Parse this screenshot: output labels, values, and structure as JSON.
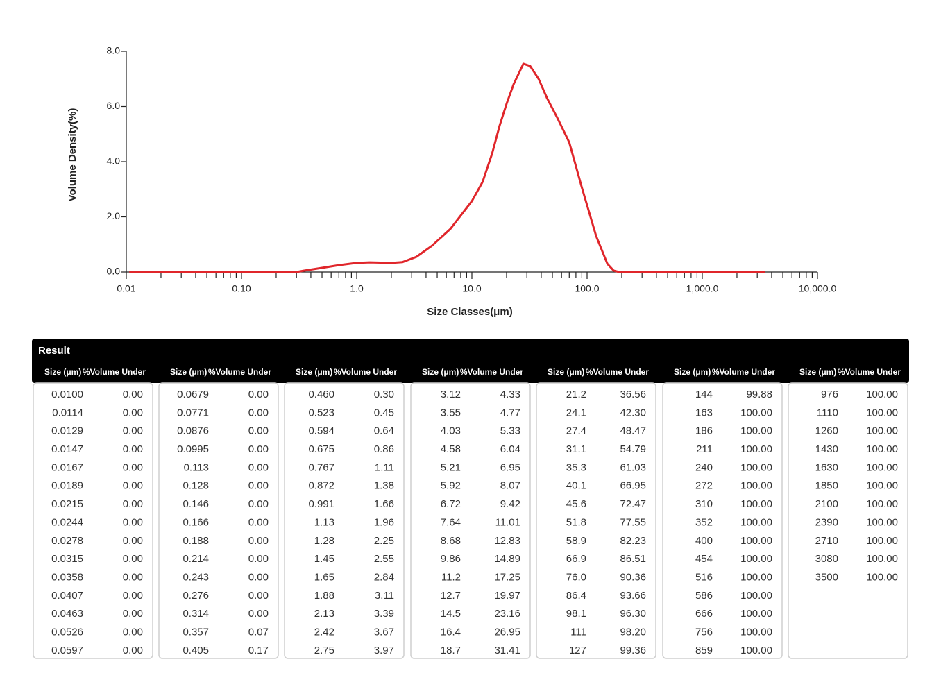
{
  "chart_data": {
    "type": "line",
    "xlabel": "Size Classes(μm)",
    "ylabel": "Volume Density(%)",
    "xlog": true,
    "color": "#e0262b",
    "x": [
      0.0106,
      0.1,
      0.3,
      0.35,
      0.5,
      0.7,
      1.0,
      1.3,
      2.0,
      2.5,
      3.3,
      4.5,
      6.5,
      10,
      12.4,
      15,
      17.4,
      20,
      23,
      28,
      32,
      38,
      45,
      55,
      70,
      90,
      120,
      150,
      170,
      190,
      3500
    ],
    "values": [
      0,
      0,
      0,
      0.05,
      0.15,
      0.25,
      0.33,
      0.35,
      0.33,
      0.36,
      0.55,
      0.95,
      1.56,
      2.57,
      3.27,
      4.3,
      5.3,
      6.1,
      6.8,
      7.55,
      7.47,
      7.0,
      6.3,
      5.6,
      4.7,
      3.07,
      1.3,
      0.3,
      0.05,
      0,
      0
    ],
    "xlim": [
      0.01,
      10000
    ],
    "xticks": [
      0.01,
      {
        "value": 0.1,
        "label": "0.10"
      },
      {
        "value": 1,
        "label": "1.0"
      },
      {
        "value": 10,
        "label": "10.0"
      },
      {
        "value": 100,
        "label": "100.0"
      },
      {
        "value": 1000,
        "label": "1,000.0"
      },
      {
        "value": 10000,
        "label": "10,000.0"
      }
    ],
    "ylim": [
      0,
      8
    ],
    "yticks": [
      {
        "value": 0,
        "label": "0.0"
      },
      {
        "value": 2,
        "label": "2.0"
      },
      {
        "value": 4,
        "label": "4.0"
      },
      {
        "value": 6,
        "label": "6.0"
      },
      {
        "value": 8,
        "label": "8.0"
      }
    ]
  },
  "table": {
    "title": "Result",
    "header": [
      "Size (μm)",
      "%Volume Under"
    ],
    "groups": [
      [
        [
          "0.0100",
          "0.00"
        ],
        [
          "0.0114",
          "0.00"
        ],
        [
          "0.0129",
          "0.00"
        ],
        [
          "0.0147",
          "0.00"
        ],
        [
          "0.0167",
          "0.00"
        ],
        [
          "0.0189",
          "0.00"
        ],
        [
          "0.0215",
          "0.00"
        ],
        [
          "0.0244",
          "0.00"
        ],
        [
          "0.0278",
          "0.00"
        ],
        [
          "0.0315",
          "0.00"
        ],
        [
          "0.0358",
          "0.00"
        ],
        [
          "0.0407",
          "0.00"
        ],
        [
          "0.0463",
          "0.00"
        ],
        [
          "0.0526",
          "0.00"
        ],
        [
          "0.0597",
          "0.00"
        ]
      ],
      [
        [
          "0.0679",
          "0.00"
        ],
        [
          "0.0771",
          "0.00"
        ],
        [
          "0.0876",
          "0.00"
        ],
        [
          "0.0995",
          "0.00"
        ],
        [
          "0.113",
          "0.00"
        ],
        [
          "0.128",
          "0.00"
        ],
        [
          "0.146",
          "0.00"
        ],
        [
          "0.166",
          "0.00"
        ],
        [
          "0.188",
          "0.00"
        ],
        [
          "0.214",
          "0.00"
        ],
        [
          "0.243",
          "0.00"
        ],
        [
          "0.276",
          "0.00"
        ],
        [
          "0.314",
          "0.00"
        ],
        [
          "0.357",
          "0.07"
        ],
        [
          "0.405",
          "0.17"
        ]
      ],
      [
        [
          "0.460",
          "0.30"
        ],
        [
          "0.523",
          "0.45"
        ],
        [
          "0.594",
          "0.64"
        ],
        [
          "0.675",
          "0.86"
        ],
        [
          "0.767",
          "1.11"
        ],
        [
          "0.872",
          "1.38"
        ],
        [
          "0.991",
          "1.66"
        ],
        [
          "1.13",
          "1.96"
        ],
        [
          "1.28",
          "2.25"
        ],
        [
          "1.45",
          "2.55"
        ],
        [
          "1.65",
          "2.84"
        ],
        [
          "1.88",
          "3.11"
        ],
        [
          "2.13",
          "3.39"
        ],
        [
          "2.42",
          "3.67"
        ],
        [
          "2.75",
          "3.97"
        ]
      ],
      [
        [
          "3.12",
          "4.33"
        ],
        [
          "3.55",
          "4.77"
        ],
        [
          "4.03",
          "5.33"
        ],
        [
          "4.58",
          "6.04"
        ],
        [
          "5.21",
          "6.95"
        ],
        [
          "5.92",
          "8.07"
        ],
        [
          "6.72",
          "9.42"
        ],
        [
          "7.64",
          "11.01"
        ],
        [
          "8.68",
          "12.83"
        ],
        [
          "9.86",
          "14.89"
        ],
        [
          "11.2",
          "17.25"
        ],
        [
          "12.7",
          "19.97"
        ],
        [
          "14.5",
          "23.16"
        ],
        [
          "16.4",
          "26.95"
        ],
        [
          "18.7",
          "31.41"
        ]
      ],
      [
        [
          "21.2",
          "36.56"
        ],
        [
          "24.1",
          "42.30"
        ],
        [
          "27.4",
          "48.47"
        ],
        [
          "31.1",
          "54.79"
        ],
        [
          "35.3",
          "61.03"
        ],
        [
          "40.1",
          "66.95"
        ],
        [
          "45.6",
          "72.47"
        ],
        [
          "51.8",
          "77.55"
        ],
        [
          "58.9",
          "82.23"
        ],
        [
          "66.9",
          "86.51"
        ],
        [
          "76.0",
          "90.36"
        ],
        [
          "86.4",
          "93.66"
        ],
        [
          "98.1",
          "96.30"
        ],
        [
          "111",
          "98.20"
        ],
        [
          "127",
          "99.36"
        ]
      ],
      [
        [
          "144",
          "99.88"
        ],
        [
          "163",
          "100.00"
        ],
        [
          "186",
          "100.00"
        ],
        [
          "211",
          "100.00"
        ],
        [
          "240",
          "100.00"
        ],
        [
          "272",
          "100.00"
        ],
        [
          "310",
          "100.00"
        ],
        [
          "352",
          "100.00"
        ],
        [
          "400",
          "100.00"
        ],
        [
          "454",
          "100.00"
        ],
        [
          "516",
          "100.00"
        ],
        [
          "586",
          "100.00"
        ],
        [
          "666",
          "100.00"
        ],
        [
          "756",
          "100.00"
        ],
        [
          "859",
          "100.00"
        ]
      ],
      [
        [
          "976",
          "100.00"
        ],
        [
          "1110",
          "100.00"
        ],
        [
          "1260",
          "100.00"
        ],
        [
          "1430",
          "100.00"
        ],
        [
          "1630",
          "100.00"
        ],
        [
          "1850",
          "100.00"
        ],
        [
          "2100",
          "100.00"
        ],
        [
          "2390",
          "100.00"
        ],
        [
          "2710",
          "100.00"
        ],
        [
          "3080",
          "100.00"
        ],
        [
          "3500",
          "100.00"
        ]
      ]
    ]
  }
}
